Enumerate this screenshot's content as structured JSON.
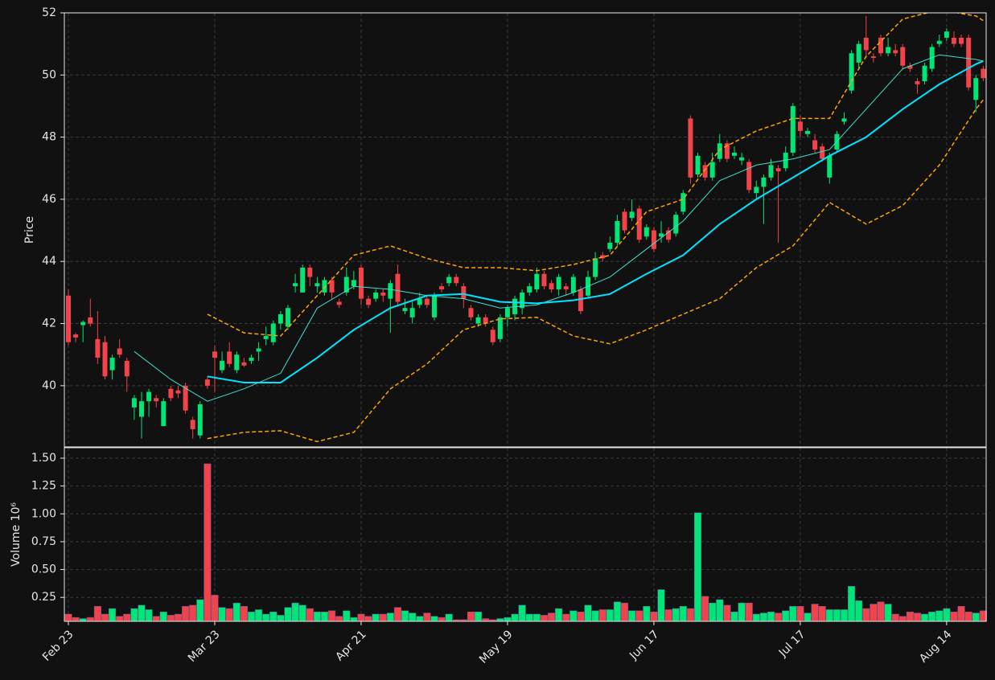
{
  "chart_data": [
    {
      "type": "candlestick",
      "ylabel": "Price",
      "ylim": [
        38.03,
        52
      ],
      "yticks": [
        40,
        42,
        44,
        46,
        48,
        50,
        52
      ],
      "xlim": [
        -0.55,
        125.4
      ],
      "grid": true,
      "up_color": "#00e676",
      "down_color": "#f0434a",
      "open": [
        42.9,
        41.65,
        41.95,
        42.2,
        41.5,
        41.4,
        40.5,
        41.2,
        40.8,
        39.3,
        39.0,
        39.5,
        39.6,
        38.7,
        39.9,
        39.85,
        40.0,
        38.9,
        38.4,
        40.2,
        41.1,
        40.5,
        41.1,
        40.5,
        40.75,
        40.8,
        41.1,
        41.5,
        41.4,
        42.0,
        41.9,
        43.2,
        43.0,
        43.8,
        43.2,
        43.0,
        43.4,
        42.7,
        43.0,
        43.2,
        43.8,
        42.8,
        42.8,
        43.0,
        42.8,
        43.6,
        42.4,
        42.2,
        42.6,
        42.8,
        42.2,
        43.2,
        43.3,
        43.5,
        43.2,
        42.5,
        42.0,
        42.2,
        41.8,
        41.5,
        42.2,
        42.3,
        42.5,
        43.0,
        43.1,
        43.6,
        43.3,
        43.1,
        43.2,
        43.0,
        43.1,
        42.9,
        43.5,
        44.2,
        44.4,
        44.6,
        45.6,
        45.4,
        45.7,
        44.8,
        45.0,
        44.8,
        45.0,
        44.9,
        45.6,
        48.6,
        46.8,
        47.1,
        46.7,
        47.3,
        47.8,
        47.4,
        47.25,
        47.2,
        46.2,
        46.4,
        46.7,
        47.0,
        47.0,
        47.5,
        48.5,
        48.1,
        47.9,
        47.7,
        46.7,
        47.6,
        48.5,
        49.5,
        50.4,
        51.2,
        50.6,
        51.2,
        50.7,
        50.8,
        50.9,
        50.3,
        49.8,
        49.8,
        50.2,
        51.0,
        51.2,
        51.2,
        51.2,
        51.2,
        49.2,
        50.2
      ],
      "high": [
        43.1,
        41.7,
        42.1,
        42.8,
        42.4,
        41.6,
        41.0,
        41.5,
        40.9,
        39.7,
        39.8,
        39.9,
        39.7,
        39.6,
        40.0,
        40.0,
        40.1,
        39.0,
        39.5,
        40.3,
        41.3,
        41.1,
        41.4,
        41.1,
        40.9,
        41.0,
        41.4,
        41.9,
        42.1,
        42.4,
        42.6,
        43.6,
        43.9,
        43.9,
        43.5,
        43.5,
        43.5,
        42.8,
        43.8,
        43.7,
        43.9,
        42.9,
        43.1,
        43.1,
        43.4,
        43.9,
        42.8,
        42.7,
        43.0,
        42.9,
        43.0,
        43.3,
        43.6,
        43.6,
        43.3,
        42.6,
        42.3,
        42.3,
        41.9,
        42.3,
        42.6,
        42.9,
        43.1,
        43.3,
        43.8,
        43.7,
        43.4,
        43.6,
        43.3,
        43.6,
        43.2,
        43.7,
        44.3,
        44.3,
        44.8,
        45.5,
        45.7,
        46.0,
        45.8,
        45.2,
        45.1,
        45.3,
        45.1,
        45.6,
        46.3,
        48.7,
        47.5,
        47.2,
        47.5,
        48.1,
        47.9,
        47.7,
        47.5,
        47.3,
        46.6,
        46.8,
        47.3,
        47.1,
        47.7,
        49.1,
        48.7,
        48.3,
        48.1,
        47.8,
        47.5,
        48.2,
        48.8,
        50.8,
        51.1,
        51.9,
        50.7,
        51.3,
        51.2,
        51.0,
        51.0,
        50.4,
        49.9,
        50.4,
        51.0,
        51.3,
        51.5,
        51.4,
        51.3,
        51.3,
        50.0,
        50.3
      ],
      "low": [
        41.3,
        41.4,
        41.4,
        41.9,
        40.7,
        40.2,
        40.2,
        40.9,
        39.8,
        38.9,
        38.3,
        39.0,
        39.3,
        38.7,
        39.5,
        39.6,
        39.1,
        38.3,
        38.3,
        39.9,
        39.8,
        40.4,
        40.6,
        40.4,
        40.6,
        40.7,
        40.8,
        41.3,
        41.3,
        41.8,
        41.8,
        43.0,
        43.0,
        43.2,
        43.0,
        42.9,
        42.8,
        42.5,
        42.9,
        43.1,
        42.6,
        42.5,
        42.7,
        42.7,
        41.7,
        42.6,
        42.3,
        42.0,
        42.5,
        42.5,
        42.1,
        43.0,
        43.2,
        43.2,
        42.5,
        42.1,
        41.9,
        41.9,
        41.3,
        41.4,
        41.9,
        42.1,
        42.3,
        42.9,
        43.0,
        43.1,
        43.0,
        42.9,
        42.9,
        42.9,
        42.3,
        42.8,
        43.4,
        44.0,
        44.3,
        44.5,
        44.9,
        45.3,
        44.6,
        44.7,
        44.3,
        44.6,
        44.6,
        44.8,
        45.5,
        46.5,
        46.7,
        46.6,
        46.6,
        47.2,
        47.2,
        47.3,
        47.1,
        46.2,
        46.0,
        45.2,
        46.6,
        44.6,
        46.9,
        47.4,
        48.0,
        48.0,
        47.5,
        47.2,
        46.5,
        47.5,
        48.4,
        49.4,
        50.2,
        50.6,
        50.4,
        50.6,
        50.6,
        50.6,
        50.2,
        50.1,
        49.4,
        49.7,
        50.1,
        50.9,
        51.1,
        50.9,
        50.9,
        49.5,
        48.8,
        49.8
      ],
      "close": [
        41.4,
        41.55,
        42.05,
        42.0,
        40.9,
        40.3,
        40.9,
        41.0,
        40.3,
        39.6,
        39.5,
        39.8,
        39.5,
        39.5,
        39.6,
        39.75,
        39.2,
        38.6,
        39.4,
        40.0,
        40.9,
        40.8,
        40.7,
        41.0,
        40.65,
        40.9,
        41.2,
        41.6,
        42.0,
        42.3,
        42.5,
        43.3,
        43.8,
        43.5,
        43.3,
        43.4,
        43.0,
        42.6,
        43.5,
        43.4,
        42.8,
        42.6,
        43.0,
        42.9,
        43.3,
        42.7,
        42.5,
        42.5,
        42.8,
        42.6,
        42.9,
        43.1,
        43.5,
        43.3,
        42.8,
        42.2,
        42.2,
        42.0,
        41.4,
        42.2,
        42.5,
        42.8,
        43.0,
        43.2,
        43.6,
        43.2,
        43.1,
        43.5,
        43.1,
        43.5,
        42.4,
        43.5,
        44.1,
        44.1,
        44.6,
        45.3,
        45.0,
        45.6,
        44.7,
        45.1,
        44.4,
        44.9,
        44.7,
        45.5,
        46.2,
        46.7,
        47.4,
        46.7,
        47.2,
        47.8,
        47.3,
        47.5,
        47.35,
        46.3,
        46.4,
        46.7,
        47.1,
        46.9,
        47.5,
        49.0,
        48.2,
        48.2,
        47.6,
        47.3,
        47.4,
        48.1,
        48.6,
        50.7,
        51.0,
        50.8,
        50.55,
        50.7,
        50.9,
        50.7,
        50.3,
        50.2,
        49.7,
        50.3,
        50.9,
        51.1,
        51.4,
        51.0,
        51.0,
        49.6,
        49.9,
        49.9
      ],
      "lines": [
        {
          "color": "#40e0d0",
          "width": 1,
          "dash": false,
          "x": [
            9,
            14,
            19,
            24,
            29,
            34,
            39,
            44,
            49,
            54,
            59,
            64,
            69,
            74,
            79,
            84,
            89,
            94,
            99,
            104,
            109,
            114,
            119,
            124,
            125
          ],
          "values": [
            41.1,
            40.2,
            39.5,
            39.9,
            40.4,
            42.5,
            43.2,
            43.1,
            42.9,
            42.8,
            42.5,
            42.6,
            43.0,
            43.5,
            44.4,
            45.3,
            46.6,
            47.1,
            47.3,
            47.6,
            48.9,
            50.2,
            50.65,
            50.5,
            50.45
          ]
        },
        {
          "color": "#00e5ff",
          "width": 2,
          "dash": false,
          "x": [
            19,
            24,
            29,
            34,
            39,
            44,
            49,
            54,
            59,
            64,
            69,
            74,
            79,
            84,
            89,
            94,
            99,
            104,
            109,
            114,
            119,
            124,
            125
          ],
          "values": [
            40.3,
            40.1,
            40.1,
            40.9,
            41.8,
            42.5,
            42.9,
            42.95,
            42.7,
            42.65,
            42.75,
            42.95,
            43.6,
            44.2,
            45.2,
            46.0,
            46.7,
            47.4,
            48.0,
            48.9,
            49.7,
            50.35,
            50.45
          ]
        },
        {
          "color": "#ffa500",
          "width": 1.5,
          "dash": true,
          "x": [
            19,
            24,
            29,
            34,
            39,
            44,
            49,
            54,
            59,
            64,
            69,
            74,
            79,
            84,
            89,
            94,
            99,
            104,
            109,
            114,
            119,
            124,
            125
          ],
          "values": [
            42.3,
            41.7,
            41.6,
            42.9,
            44.2,
            44.5,
            44.1,
            43.8,
            43.8,
            43.7,
            43.9,
            44.2,
            45.6,
            46.0,
            47.6,
            48.2,
            48.6,
            48.6,
            50.6,
            51.8,
            52.1,
            51.9,
            51.75
          ]
        },
        {
          "color": "#ffa500",
          "width": 1.5,
          "dash": true,
          "x": [
            19,
            24,
            29,
            34,
            39,
            44,
            49,
            54,
            59,
            64,
            69,
            74,
            79,
            84,
            89,
            94,
            99,
            104,
            109,
            114,
            119,
            124,
            125
          ],
          "values": [
            38.3,
            38.5,
            38.55,
            38.2,
            38.5,
            39.9,
            40.7,
            41.8,
            42.15,
            42.2,
            41.6,
            41.35,
            41.8,
            42.3,
            42.8,
            43.8,
            44.5,
            45.9,
            45.2,
            45.8,
            47.1,
            48.9,
            49.2
          ]
        }
      ]
    },
    {
      "type": "bar",
      "ylabel": "Volume  10⁶",
      "ylim": [
        0.035,
        1.594
      ],
      "yticks": [
        0.25,
        {
          "value": 0.5,
          "label": "0.50"
        },
        0.75,
        {
          "value": 1,
          "label": "1.00"
        },
        1.25,
        {
          "value": 1.5,
          "label": "1.50"
        }
      ],
      "xlim": [
        -0.55,
        125.4
      ],
      "grid": true,
      "xticks": [
        {
          "value": 0,
          "label": "Feb 23"
        },
        {
          "value": 20,
          "label": "Mar 23"
        },
        {
          "value": 40,
          "label": "Apr 21"
        },
        {
          "value": 60,
          "label": "May 19"
        },
        {
          "value": 80,
          "label": "Jun 17"
        },
        {
          "value": 100,
          "label": "Jul 17"
        },
        {
          "value": 120,
          "label": "Aug 14"
        }
      ],
      "values": [
        0.1,
        0.07,
        0.06,
        0.07,
        0.17,
        0.1,
        0.15,
        0.08,
        0.1,
        0.15,
        0.18,
        0.14,
        0.08,
        0.12,
        0.09,
        0.1,
        0.17,
        0.18,
        0.23,
        1.45,
        0.27,
        0.16,
        0.15,
        0.2,
        0.17,
        0.12,
        0.14,
        0.1,
        0.12,
        0.09,
        0.16,
        0.2,
        0.18,
        0.15,
        0.12,
        0.12,
        0.13,
        0.08,
        0.13,
        0.07,
        0.1,
        0.08,
        0.1,
        0.1,
        0.11,
        0.16,
        0.13,
        0.11,
        0.08,
        0.11,
        0.08,
        0.07,
        0.1,
        0.05,
        0.05,
        0.12,
        0.12,
        0.06,
        0.05,
        0.06,
        0.07,
        0.1,
        0.18,
        0.1,
        0.1,
        0.09,
        0.11,
        0.15,
        0.1,
        0.13,
        0.12,
        0.18,
        0.13,
        0.14,
        0.14,
        0.21,
        0.2,
        0.13,
        0.13,
        0.17,
        0.12,
        0.32,
        0.14,
        0.15,
        0.17,
        0.15,
        1.01,
        0.26,
        0.2,
        0.23,
        0.18,
        0.12,
        0.2,
        0.2,
        0.1,
        0.11,
        0.12,
        0.11,
        0.13,
        0.17,
        0.17,
        0.11,
        0.19,
        0.17,
        0.14,
        0.14,
        0.14,
        0.35,
        0.22,
        0.15,
        0.19,
        0.21,
        0.19,
        0.1,
        0.08,
        0.12,
        0.11,
        0.1,
        0.12,
        0.13,
        0.15,
        0.12,
        0.17,
        0.12,
        0.11,
        0.13
      ]
    }
  ]
}
